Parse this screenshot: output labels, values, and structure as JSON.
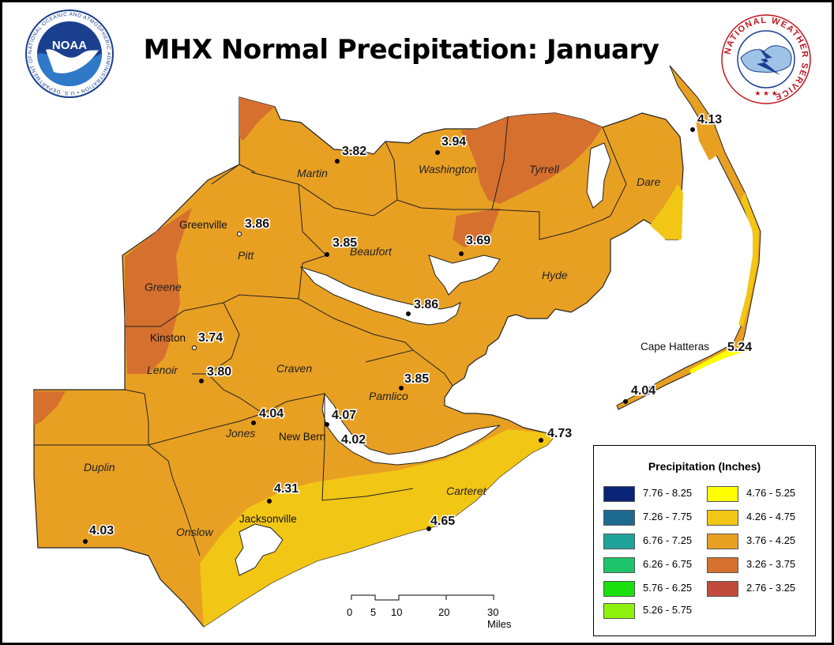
{
  "title": "MHX Normal Precipitation: January",
  "logos": {
    "noaa_text": "NOAA",
    "noaa_ring": "NATIONAL OCEANIC AND ATMOSPHERIC ADMINISTRATION • U.S. DEPARTMENT OF COMMERCE •",
    "nws_ring": "NATIONAL WEATHER SERVICE"
  },
  "counties": [
    "Martin",
    "Washington",
    "Tyrrell",
    "Dare",
    "Pitt",
    "Beaufort",
    "Hyde",
    "Greene",
    "Craven",
    "Pamlico",
    "Lenoir",
    "Jones",
    "Duplin",
    "Onslow",
    "Carteret"
  ],
  "stations": [
    {
      "name": "",
      "value": "3.82"
    },
    {
      "name": "",
      "value": "3.94"
    },
    {
      "name": "",
      "value": "4.13"
    },
    {
      "name": "Greenville",
      "value": "3.86"
    },
    {
      "name": "",
      "value": "3.85"
    },
    {
      "name": "",
      "value": "3.69"
    },
    {
      "name": "",
      "value": "3.86"
    },
    {
      "name": "Kinston",
      "value": "3.74"
    },
    {
      "name": "",
      "value": "3.80"
    },
    {
      "name": "",
      "value": "3.85"
    },
    {
      "name": "",
      "value": "4.04"
    },
    {
      "name": "",
      "value": "4.07"
    },
    {
      "name": "New Bern",
      "value": "4.02"
    },
    {
      "name": "Cape Hatteras",
      "value": "5.24"
    },
    {
      "name": "",
      "value": "4.04"
    },
    {
      "name": "",
      "value": "4.73"
    },
    {
      "name": "",
      "value": "4.31"
    },
    {
      "name": "Jacksonville",
      "value": ""
    },
    {
      "name": "",
      "value": "4.65"
    },
    {
      "name": "",
      "value": "4.03"
    }
  ],
  "legend": {
    "title": "Precipitation (Inches)",
    "left": [
      {
        "label": "7.76 - 8.25",
        "color": "#0a2476"
      },
      {
        "label": "7.26 - 7.75",
        "color": "#1d6a91"
      },
      {
        "label": "6.76 - 7.25",
        "color": "#1fa39b"
      },
      {
        "label": "6.26 - 6.75",
        "color": "#1ec46c"
      },
      {
        "label": "5.76 - 6.25",
        "color": "#19e00e"
      },
      {
        "label": "5.26 - 5.75",
        "color": "#8ff10e"
      }
    ],
    "right": [
      {
        "label": "4.76 - 5.25",
        "color": "#ffff00"
      },
      {
        "label": "4.26 - 4.75",
        "color": "#f2c615"
      },
      {
        "label": "3.76 - 4.25",
        "color": "#e8a023"
      },
      {
        "label": "3.26 - 3.75",
        "color": "#d6702f"
      },
      {
        "label": "2.76 - 3.25",
        "color": "#c04b3c"
      }
    ]
  },
  "scale": {
    "ticks": [
      "0",
      "5",
      "10",
      "20",
      "30 Miles"
    ]
  }
}
